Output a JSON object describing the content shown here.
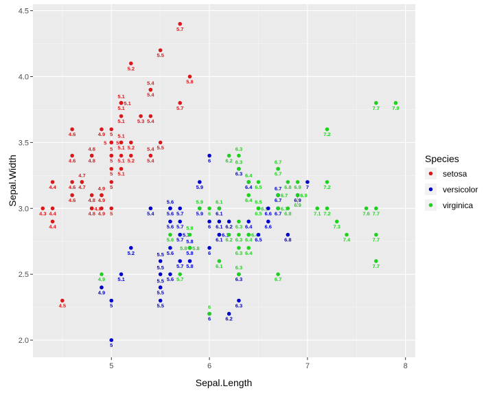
{
  "chart_data": {
    "type": "scatter",
    "xlabel": "Sepal.Length",
    "ylabel": "Sepal.Width",
    "xlim": [
      4.2,
      8.1
    ],
    "ylim": [
      1.87,
      4.55
    ],
    "x_ticks": [
      "5",
      "6",
      "7",
      "8"
    ],
    "y_ticks": [
      "2.0",
      "2.5",
      "3.0",
      "3.5",
      "4.0",
      "4.5"
    ],
    "grid": true,
    "legend": {
      "title": "Species",
      "placement": "right",
      "entries": [
        {
          "name": "setosa",
          "color": "#d7191c"
        },
        {
          "name": "versicolor",
          "color": "#0000cc"
        },
        {
          "name": "virginica",
          "color": "#1fd11f"
        }
      ]
    },
    "series": [
      {
        "name": "setosa",
        "color": "#d7191c",
        "points": [
          [
            5.1,
            3.5
          ],
          [
            4.9,
            3.0
          ],
          [
            4.7,
            3.2
          ],
          [
            4.6,
            3.1
          ],
          [
            5.0,
            3.6
          ],
          [
            5.4,
            3.9
          ],
          [
            4.6,
            3.4
          ],
          [
            5.0,
            3.4
          ],
          [
            4.4,
            2.9
          ],
          [
            4.9,
            3.1
          ],
          [
            5.4,
            3.7
          ],
          [
            4.8,
            3.4
          ],
          [
            4.8,
            3.0
          ],
          [
            4.3,
            3.0
          ],
          [
            5.8,
            4.0
          ],
          [
            5.7,
            4.4
          ],
          [
            5.4,
            3.9
          ],
          [
            5.1,
            3.5
          ],
          [
            5.7,
            3.8
          ],
          [
            5.1,
            3.8
          ],
          [
            5.4,
            3.4
          ],
          [
            5.1,
            3.7
          ],
          [
            4.6,
            3.6
          ],
          [
            5.1,
            3.3
          ],
          [
            4.8,
            3.4
          ],
          [
            5.0,
            3.0
          ],
          [
            5.0,
            3.4
          ],
          [
            5.2,
            3.5
          ],
          [
            5.2,
            3.4
          ],
          [
            4.7,
            3.2
          ],
          [
            4.8,
            3.1
          ],
          [
            5.4,
            3.4
          ],
          [
            5.2,
            4.1
          ],
          [
            5.5,
            4.2
          ],
          [
            4.9,
            3.1
          ],
          [
            5.0,
            3.2
          ],
          [
            5.5,
            3.5
          ],
          [
            4.9,
            3.6
          ],
          [
            4.4,
            3.0
          ],
          [
            5.1,
            3.4
          ],
          [
            5.0,
            3.5
          ],
          [
            4.5,
            2.3
          ],
          [
            4.4,
            3.2
          ],
          [
            5.0,
            3.5
          ],
          [
            5.1,
            3.8
          ],
          [
            4.8,
            3.0
          ],
          [
            5.1,
            3.8
          ],
          [
            4.6,
            3.2
          ],
          [
            5.3,
            3.7
          ],
          [
            5.0,
            3.3
          ]
        ]
      },
      {
        "name": "versicolor",
        "color": "#0000cc",
        "points": [
          [
            7.0,
            3.2
          ],
          [
            6.4,
            3.2
          ],
          [
            6.9,
            3.1
          ],
          [
            5.5,
            2.3
          ],
          [
            6.5,
            2.8
          ],
          [
            5.7,
            2.8
          ],
          [
            6.3,
            3.3
          ],
          [
            4.9,
            2.4
          ],
          [
            6.6,
            2.9
          ],
          [
            5.2,
            2.7
          ],
          [
            5.0,
            2.0
          ],
          [
            5.9,
            3.0
          ],
          [
            6.0,
            2.2
          ],
          [
            6.1,
            2.9
          ],
          [
            5.6,
            2.9
          ],
          [
            6.7,
            3.1
          ],
          [
            5.6,
            3.0
          ],
          [
            5.8,
            2.7
          ],
          [
            6.2,
            2.2
          ],
          [
            5.6,
            2.5
          ],
          [
            5.9,
            3.2
          ],
          [
            6.1,
            2.8
          ],
          [
            6.3,
            2.5
          ],
          [
            6.1,
            2.8
          ],
          [
            6.4,
            2.9
          ],
          [
            6.6,
            3.0
          ],
          [
            6.8,
            2.8
          ],
          [
            6.7,
            3.0
          ],
          [
            6.0,
            2.9
          ],
          [
            5.7,
            2.6
          ],
          [
            5.5,
            2.4
          ],
          [
            5.5,
            2.4
          ],
          [
            5.8,
            2.7
          ],
          [
            6.0,
            2.7
          ],
          [
            5.4,
            3.0
          ],
          [
            6.0,
            3.4
          ],
          [
            6.7,
            3.1
          ],
          [
            6.3,
            2.3
          ],
          [
            5.6,
            3.0
          ],
          [
            5.5,
            2.5
          ],
          [
            5.5,
            2.6
          ],
          [
            6.1,
            3.0
          ],
          [
            5.8,
            2.6
          ],
          [
            5.0,
            2.3
          ],
          [
            5.6,
            2.7
          ],
          [
            5.7,
            3.0
          ],
          [
            5.7,
            2.9
          ],
          [
            6.2,
            2.9
          ],
          [
            5.1,
            2.5
          ],
          [
            5.7,
            2.8
          ]
        ]
      },
      {
        "name": "virginica",
        "color": "#1fd11f",
        "points": [
          [
            6.3,
            3.3
          ],
          [
            5.8,
            2.7
          ],
          [
            7.1,
            3.0
          ],
          [
            6.3,
            2.9
          ],
          [
            6.5,
            3.0
          ],
          [
            7.6,
            3.0
          ],
          [
            4.9,
            2.5
          ],
          [
            7.3,
            2.9
          ],
          [
            6.7,
            2.5
          ],
          [
            7.2,
            3.6
          ],
          [
            6.5,
            3.2
          ],
          [
            6.4,
            2.7
          ],
          [
            6.8,
            3.0
          ],
          [
            5.7,
            2.5
          ],
          [
            5.8,
            2.8
          ],
          [
            6.4,
            3.2
          ],
          [
            6.5,
            3.0
          ],
          [
            7.7,
            3.8
          ],
          [
            7.7,
            2.6
          ],
          [
            6.0,
            2.2
          ],
          [
            6.9,
            3.2
          ],
          [
            5.6,
            2.8
          ],
          [
            7.7,
            2.8
          ],
          [
            6.3,
            2.7
          ],
          [
            6.7,
            3.3
          ],
          [
            7.2,
            3.2
          ],
          [
            6.2,
            2.8
          ],
          [
            6.1,
            3.0
          ],
          [
            6.4,
            2.8
          ],
          [
            7.2,
            3.0
          ],
          [
            7.4,
            2.8
          ],
          [
            7.9,
            3.8
          ],
          [
            6.4,
            2.8
          ],
          [
            6.3,
            2.8
          ],
          [
            6.1,
            2.6
          ],
          [
            7.7,
            3.0
          ],
          [
            6.3,
            3.4
          ],
          [
            6.4,
            3.1
          ],
          [
            6.0,
            3.0
          ],
          [
            6.9,
            3.1
          ],
          [
            6.7,
            3.1
          ],
          [
            6.9,
            3.1
          ],
          [
            5.8,
            2.7
          ],
          [
            6.8,
            3.2
          ],
          [
            6.7,
            3.3
          ],
          [
            6.7,
            3.0
          ],
          [
            6.3,
            2.5
          ],
          [
            6.5,
            3.0
          ],
          [
            6.2,
            3.4
          ],
          [
            5.9,
            3.0
          ]
        ]
      }
    ]
  }
}
